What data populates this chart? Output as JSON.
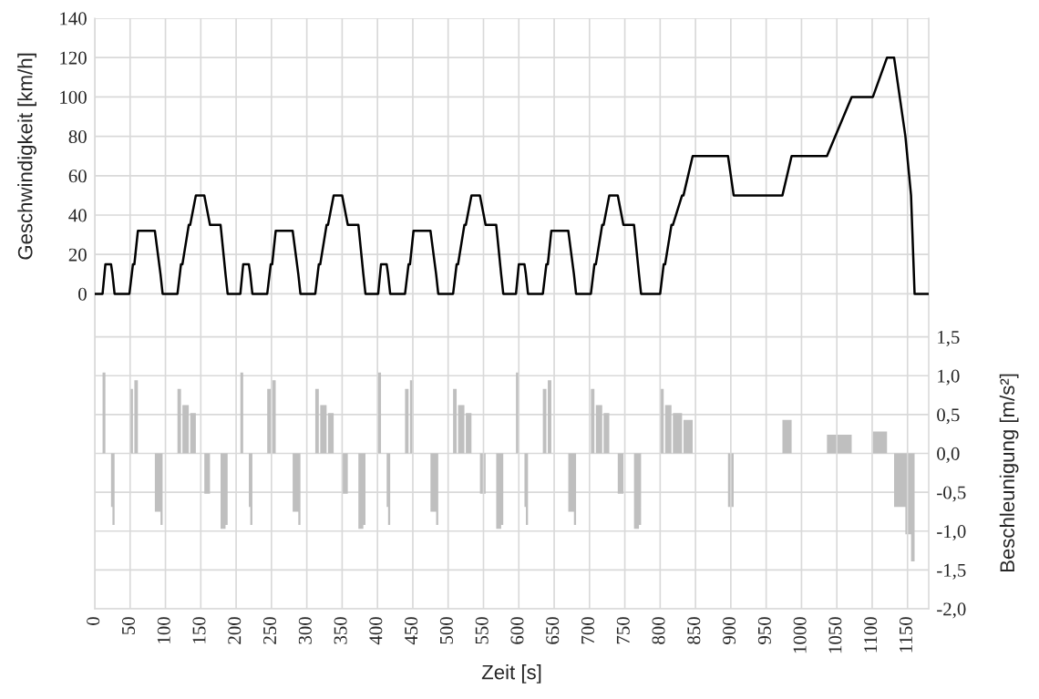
{
  "chart_data": {
    "type": "line",
    "xlabel": "Zeit [s]",
    "ylabel": "Geschwindigkeit [km/h]",
    "y2label": "Beschleunigung [m/s²]",
    "xlim": [
      0,
      1180
    ],
    "xticks": [
      0,
      50,
      100,
      150,
      200,
      250,
      300,
      350,
      400,
      450,
      500,
      550,
      600,
      650,
      700,
      750,
      800,
      850,
      900,
      950,
      1000,
      1050,
      1100,
      1150
    ],
    "ylim": [
      -160,
      140
    ],
    "yticks": [
      0,
      20,
      40,
      60,
      80,
      100,
      120,
      140
    ],
    "y2lim": [
      -2.0,
      5.6
    ],
    "y2ticks": [
      {
        "value": -2.0,
        "label": "-2,0"
      },
      {
        "value": -1.5,
        "label": "-1,5"
      },
      {
        "value": -1.0,
        "label": "-1,0"
      },
      {
        "value": -0.5,
        "label": "-0,5"
      },
      {
        "value": 0.0,
        "label": "0,0"
      },
      {
        "value": 0.5,
        "label": "0,5"
      },
      {
        "value": 1.0,
        "label": "1,0"
      },
      {
        "value": 1.5,
        "label": "1,5"
      }
    ],
    "grid": true,
    "legend": false,
    "series": [
      {
        "type": "area",
        "axis": "y2",
        "color": "#bfbfbf",
        "x": [
          0,
          11,
          11,
          15,
          15,
          23,
          23,
          25,
          25,
          28,
          28,
          49,
          49,
          54,
          54,
          56,
          56,
          61,
          61,
          85,
          85,
          93,
          93,
          96,
          96,
          117,
          117,
          122,
          122,
          124,
          124,
          133,
          133,
          135,
          135,
          143,
          143,
          155,
          155,
          163,
          163,
          178,
          178,
          185,
          185,
          188,
          188
        ],
        "values": [
          0,
          0,
          1.04,
          1.04,
          0,
          0,
          -0.69,
          -0.69,
          -0.92,
          -0.92,
          0,
          0,
          0.83,
          0.83,
          0,
          0,
          0.94,
          0.94,
          0,
          0,
          -0.75,
          -0.75,
          -0.92,
          -0.92,
          0,
          0,
          0.83,
          0.83,
          0,
          0,
          0.62,
          0.62,
          0,
          0,
          0.52,
          0.52,
          0,
          0,
          -0.52,
          -0.52,
          0,
          0,
          -0.97,
          -0.97,
          -0.92,
          -0.92,
          0
        ]
      },
      {
        "type": "area",
        "axis": "y2",
        "color": "#bfbfbf",
        "x": [
          195,
          206,
          206,
          210,
          210,
          218,
          218,
          220,
          220,
          223,
          223,
          244,
          244,
          249,
          249,
          251,
          251,
          256,
          256,
          280,
          280,
          288,
          288,
          291,
          291,
          312,
          312,
          317,
          317,
          319,
          319,
          328,
          328,
          330,
          330,
          338,
          338,
          350,
          350,
          358,
          358,
          373,
          373,
          380,
          380,
          383,
          383
        ],
        "values": [
          0,
          0,
          1.04,
          1.04,
          0,
          0,
          -0.69,
          -0.69,
          -0.92,
          -0.92,
          0,
          0,
          0.83,
          0.83,
          0,
          0,
          0.94,
          0.94,
          0,
          0,
          -0.75,
          -0.75,
          -0.92,
          -0.92,
          0,
          0,
          0.83,
          0.83,
          0,
          0,
          0.62,
          0.62,
          0,
          0,
          0.52,
          0.52,
          0,
          0,
          -0.52,
          -0.52,
          0,
          0,
          -0.97,
          -0.97,
          -0.92,
          -0.92,
          0
        ]
      },
      {
        "type": "area",
        "axis": "y2",
        "color": "#bfbfbf",
        "x": [
          390,
          401,
          401,
          405,
          405,
          413,
          413,
          415,
          415,
          418,
          418,
          439,
          439,
          444,
          444,
          446,
          446,
          451,
          451,
          475,
          475,
          483,
          483,
          486,
          486,
          507,
          507,
          512,
          512,
          514,
          514,
          523,
          523,
          525,
          525,
          533,
          533,
          545,
          545,
          553,
          553,
          568,
          568,
          575,
          575,
          578,
          578
        ],
        "values": [
          0,
          0,
          1.04,
          1.04,
          0,
          0,
          -0.69,
          -0.69,
          -0.92,
          -0.92,
          0,
          0,
          0.83,
          0.83,
          0,
          0,
          0.94,
          0.94,
          0,
          0,
          -0.75,
          -0.75,
          -0.92,
          -0.92,
          0,
          0,
          0.83,
          0.83,
          0,
          0,
          0.62,
          0.62,
          0,
          0,
          0.52,
          0.52,
          0,
          0,
          -0.52,
          -0.52,
          0,
          0,
          -0.97,
          -0.97,
          -0.92,
          -0.92,
          0
        ]
      },
      {
        "type": "area",
        "axis": "y2",
        "color": "#bfbfbf",
        "x": [
          585,
          596,
          596,
          600,
          600,
          608,
          608,
          610,
          610,
          613,
          613,
          634,
          634,
          639,
          639,
          641,
          641,
          646,
          646,
          670,
          670,
          678,
          678,
          681,
          681,
          702,
          702,
          707,
          707,
          709,
          709,
          718,
          718,
          720,
          720,
          728,
          728,
          740,
          740,
          748,
          748,
          763,
          763,
          770,
          770,
          773,
          773
        ],
        "values": [
          0,
          0,
          1.04,
          1.04,
          0,
          0,
          -0.69,
          -0.69,
          -0.92,
          -0.92,
          0,
          0,
          0.83,
          0.83,
          0,
          0,
          0.94,
          0.94,
          0,
          0,
          -0.75,
          -0.75,
          -0.92,
          -0.92,
          0,
          0,
          0.83,
          0.83,
          0,
          0,
          0.62,
          0.62,
          0,
          0,
          0.52,
          0.52,
          0,
          0,
          -0.52,
          -0.52,
          0,
          0,
          -0.97,
          -0.97,
          -0.92,
          -0.92,
          0
        ]
      },
      {
        "type": "area",
        "axis": "y2",
        "color": "#bfbfbf",
        "x": [
          800,
          800,
          805,
          805,
          807,
          807,
          816,
          816,
          818,
          818,
          831,
          831,
          833,
          833,
          846,
          846,
          896,
          896,
          904,
          904,
          973,
          973,
          986,
          986,
          1036,
          1036,
          1071,
          1071,
          1101,
          1101,
          1121,
          1121,
          1131,
          1131,
          1147,
          1147,
          1155,
          1155,
          1160,
          1160
        ],
        "values": [
          0,
          0.83,
          0.83,
          0,
          0,
          0.62,
          0.62,
          0,
          0,
          0.52,
          0.52,
          0,
          0,
          0.43,
          0.43,
          0,
          0,
          -0.69,
          -0.69,
          0,
          0,
          0.43,
          0.43,
          0,
          0,
          0.24,
          0.24,
          0,
          0,
          0.28,
          0.28,
          0,
          0,
          -0.69,
          -0.69,
          -1.04,
          -1.04,
          -1.39,
          -1.39,
          0
        ]
      },
      {
        "color": "#000000",
        "x": [
          0,
          11,
          15,
          23,
          25,
          28,
          49,
          54,
          56,
          61,
          85,
          93,
          96,
          117,
          122,
          124,
          133,
          135,
          143,
          155,
          163,
          178,
          185,
          188,
          195,
          206,
          210,
          218,
          220,
          223,
          244,
          249,
          251,
          256,
          280,
          288,
          291,
          312,
          317,
          319,
          328,
          330,
          338,
          350,
          358,
          373,
          380,
          383,
          390,
          401,
          405,
          413,
          415,
          418,
          439,
          444,
          446,
          451,
          475,
          483,
          486,
          507,
          512,
          514,
          523,
          525,
          533,
          545,
          553,
          568,
          575,
          578,
          585,
          596,
          600,
          608,
          610,
          613,
          634,
          639,
          641,
          646,
          670,
          678,
          681,
          702,
          707,
          709,
          718,
          720,
          728,
          740,
          748,
          763,
          770,
          773,
          800,
          805,
          807,
          816,
          818,
          831,
          833,
          846,
          896,
          904,
          973,
          986,
          1036,
          1071,
          1101,
          1121,
          1131,
          1147,
          1155,
          1160,
          1180
        ],
        "values": [
          0,
          0,
          15,
          15,
          10,
          0,
          0,
          15,
          15,
          32,
          32,
          10,
          0,
          0,
          15,
          15,
          35,
          35,
          50,
          50,
          35,
          35,
          10,
          0,
          0,
          0,
          15,
          15,
          10,
          0,
          0,
          15,
          15,
          32,
          32,
          10,
          0,
          0,
          15,
          15,
          35,
          35,
          50,
          50,
          35,
          35,
          10,
          0,
          0,
          0,
          15,
          15,
          10,
          0,
          0,
          15,
          15,
          32,
          32,
          10,
          0,
          0,
          15,
          15,
          35,
          35,
          50,
          50,
          35,
          35,
          10,
          0,
          0,
          0,
          15,
          15,
          10,
          0,
          0,
          15,
          15,
          32,
          32,
          10,
          0,
          0,
          15,
          15,
          35,
          35,
          50,
          50,
          35,
          35,
          10,
          0,
          0,
          15,
          15,
          35,
          35,
          50,
          50,
          70,
          70,
          50,
          50,
          70,
          70,
          100,
          100,
          120,
          120,
          80,
          50,
          0,
          0
        ]
      }
    ]
  }
}
